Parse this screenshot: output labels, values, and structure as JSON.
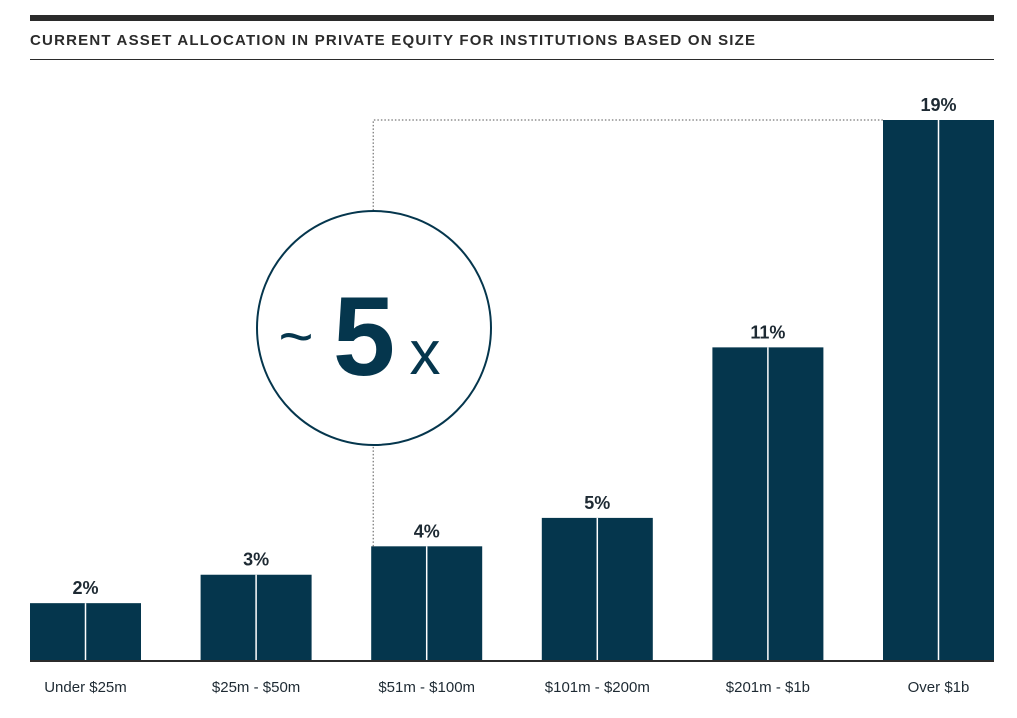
{
  "title": "CURRENT ASSET ALLOCATION IN PRIVATE EQUITY FOR INSTITUTIONS BASED ON SIZE",
  "callout": {
    "tilde": "~",
    "number": "5",
    "suffix": "x"
  },
  "colors": {
    "bar": "#05364d",
    "divider": "#ffffff",
    "axis": "#2b2b2b",
    "text": "#1e2a33"
  },
  "chart_data": {
    "type": "bar",
    "title": "CURRENT ASSET ALLOCATION IN PRIVATE EQUITY FOR INSTITUTIONS BASED ON SIZE",
    "categories": [
      "Under $25m",
      "$25m - $50m",
      "$51m - $100m",
      "$101m - $200m",
      "$201m - $1b",
      "Over $1b"
    ],
    "values": [
      2,
      3,
      4,
      5,
      11,
      19
    ],
    "value_labels": [
      "2%",
      "3%",
      "4%",
      "5%",
      "11%",
      "19%"
    ],
    "unit": "%",
    "xlabel": "",
    "ylabel": "",
    "ylim": [
      0,
      19
    ],
    "grid": false,
    "legend": "none",
    "annotation": "~5x"
  }
}
